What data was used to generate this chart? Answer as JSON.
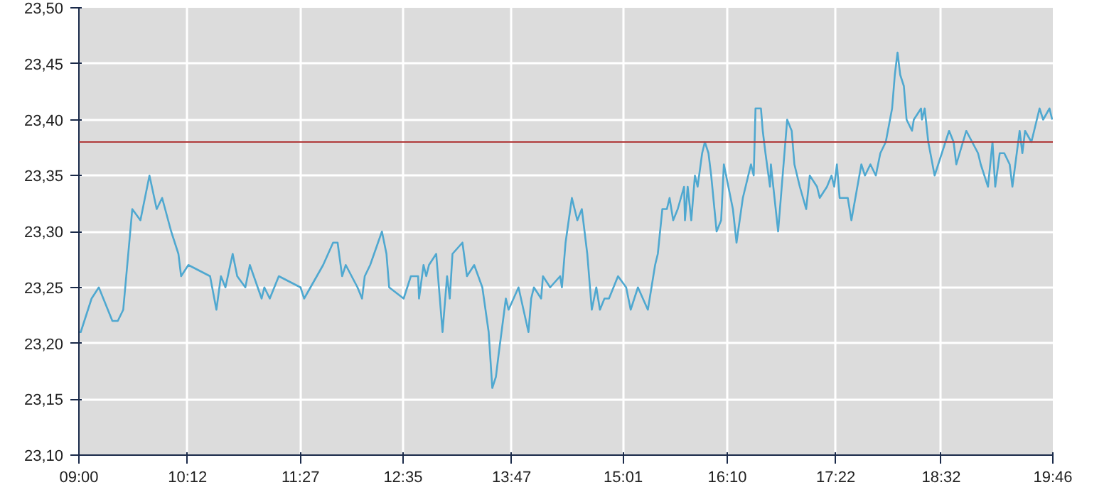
{
  "chart_data": {
    "type": "line",
    "x": [
      9.0,
      9.02,
      9.14,
      9.22,
      9.27,
      9.37,
      9.43,
      9.49,
      9.59,
      9.68,
      9.78,
      9.86,
      9.92,
      10.02,
      10.1,
      10.13,
      10.21,
      10.45,
      10.52,
      10.57,
      10.62,
      10.7,
      10.75,
      10.84,
      10.89,
      11.02,
      11.05,
      11.11,
      11.21,
      11.45,
      11.49,
      11.56,
      11.7,
      11.81,
      11.86,
      11.91,
      11.95,
      12.08,
      12.13,
      12.16,
      12.22,
      12.35,
      12.4,
      12.43,
      12.59,
      12.67,
      12.75,
      12.76,
      12.81,
      12.84,
      12.87,
      12.95,
      13.02,
      13.07,
      13.1,
      13.13,
      13.24,
      13.29,
      13.37,
      13.46,
      13.53,
      13.57,
      13.61,
      13.64,
      13.72,
      13.75,
      13.86,
      13.97,
      14.0,
      14.03,
      14.11,
      14.13,
      14.21,
      14.32,
      14.34,
      14.38,
      14.45,
      14.51,
      14.56,
      14.62,
      14.67,
      14.72,
      14.76,
      14.81,
      14.86,
      14.96,
      15.05,
      15.1,
      15.18,
      15.29,
      15.37,
      15.4,
      15.45,
      15.5,
      15.53,
      15.57,
      15.62,
      15.69,
      15.7,
      15.73,
      15.77,
      15.81,
      15.84,
      15.89,
      15.92,
      15.96,
      15.99,
      16.05,
      16.1,
      16.13,
      16.18,
      16.23,
      16.27,
      16.34,
      16.4,
      16.43,
      16.46,
      16.48,
      16.54,
      16.56,
      16.59,
      16.64,
      16.65,
      16.69,
      16.73,
      16.77,
      16.83,
      16.88,
      16.91,
      16.97,
      17.04,
      17.08,
      17.16,
      17.19,
      17.27,
      17.32,
      17.35,
      17.38,
      17.41,
      17.5,
      17.54,
      17.65,
      17.69,
      17.75,
      17.81,
      17.86,
      17.92,
      17.99,
      18.02,
      18.05,
      18.08,
      18.12,
      18.15,
      18.21,
      18.23,
      18.31,
      18.32,
      18.35,
      18.39,
      18.46,
      18.5,
      18.54,
      18.58,
      18.62,
      18.67,
      18.7,
      18.81,
      18.94,
      18.97,
      19.05,
      19.1,
      19.13,
      19.18,
      19.23,
      19.29,
      19.32,
      19.4,
      19.43,
      19.46,
      19.53,
      19.56,
      19.62,
      19.66,
      19.73,
      19.76
    ],
    "series": [
      {
        "color": "#4fa8d0",
        "values": [
          23.21,
          23.21,
          23.24,
          23.25,
          23.24,
          23.22,
          23.22,
          23.23,
          23.32,
          23.31,
          23.35,
          23.32,
          23.33,
          23.3,
          23.28,
          23.26,
          23.27,
          23.26,
          23.23,
          23.26,
          23.25,
          23.28,
          23.26,
          23.25,
          23.27,
          23.24,
          23.25,
          23.24,
          23.26,
          23.25,
          23.24,
          23.25,
          23.27,
          23.29,
          23.29,
          23.26,
          23.27,
          23.25,
          23.24,
          23.26,
          23.27,
          23.3,
          23.28,
          23.25,
          23.24,
          23.26,
          23.26,
          23.24,
          23.27,
          23.26,
          23.27,
          23.28,
          23.21,
          23.26,
          23.24,
          23.28,
          23.29,
          23.26,
          23.27,
          23.25,
          23.21,
          23.16,
          23.17,
          23.19,
          23.24,
          23.23,
          23.25,
          23.21,
          23.24,
          23.25,
          23.24,
          23.26,
          23.25,
          23.26,
          23.25,
          23.29,
          23.33,
          23.31,
          23.32,
          23.28,
          23.23,
          23.25,
          23.23,
          23.24,
          23.24,
          23.26,
          23.25,
          23.23,
          23.25,
          23.23,
          23.27,
          23.28,
          23.32,
          23.32,
          23.33,
          23.31,
          23.32,
          23.34,
          23.31,
          23.34,
          23.31,
          23.35,
          23.34,
          23.37,
          23.38,
          23.37,
          23.35,
          23.3,
          23.31,
          23.36,
          23.34,
          23.32,
          23.29,
          23.33,
          23.35,
          23.36,
          23.35,
          23.41,
          23.41,
          23.39,
          23.37,
          23.34,
          23.36,
          23.33,
          23.3,
          23.34,
          23.4,
          23.39,
          23.36,
          23.34,
          23.32,
          23.35,
          23.34,
          23.33,
          23.34,
          23.35,
          23.34,
          23.36,
          23.33,
          23.33,
          23.31,
          23.36,
          23.35,
          23.36,
          23.35,
          23.37,
          23.38,
          23.41,
          23.44,
          23.46,
          23.44,
          23.43,
          23.4,
          23.39,
          23.4,
          23.41,
          23.4,
          23.41,
          23.38,
          23.35,
          23.36,
          23.37,
          23.38,
          23.39,
          23.38,
          23.36,
          23.39,
          23.37,
          23.36,
          23.34,
          23.38,
          23.34,
          23.37,
          23.37,
          23.36,
          23.34,
          23.39,
          23.37,
          23.39,
          23.38,
          23.39,
          23.41,
          23.4,
          23.41,
          23.4
        ]
      }
    ],
    "xlim": [
      9.0,
      19.767
    ],
    "xticks": [
      {
        "value": 9.0,
        "label": "09:00"
      },
      {
        "value": 10.2,
        "label": "10:12"
      },
      {
        "value": 11.45,
        "label": "11:27"
      },
      {
        "value": 12.583,
        "label": "12:35"
      },
      {
        "value": 13.783,
        "label": "13:47"
      },
      {
        "value": 15.017,
        "label": "15:01"
      },
      {
        "value": 16.167,
        "label": "16:10"
      },
      {
        "value": 17.367,
        "label": "17:22"
      },
      {
        "value": 18.533,
        "label": "18:32"
      },
      {
        "value": 19.767,
        "label": "19:46"
      }
    ],
    "ylim": [
      23.1,
      23.5
    ],
    "yticks": [
      {
        "value": 23.1,
        "label": "23,10"
      },
      {
        "value": 23.15,
        "label": "23,15"
      },
      {
        "value": 23.2,
        "label": "23,20"
      },
      {
        "value": 23.25,
        "label": "23,25"
      },
      {
        "value": 23.3,
        "label": "23,30"
      },
      {
        "value": 23.35,
        "label": "23,35"
      },
      {
        "value": 23.4,
        "label": "23,40"
      },
      {
        "value": 23.45,
        "label": "23,45"
      },
      {
        "value": 23.5,
        "label": "23,50"
      }
    ],
    "ref_lines": [
      {
        "axis": "y",
        "value": 23.38,
        "color": "#b03a3a"
      }
    ],
    "grid": true,
    "line_style": "solid",
    "marker": "none"
  }
}
